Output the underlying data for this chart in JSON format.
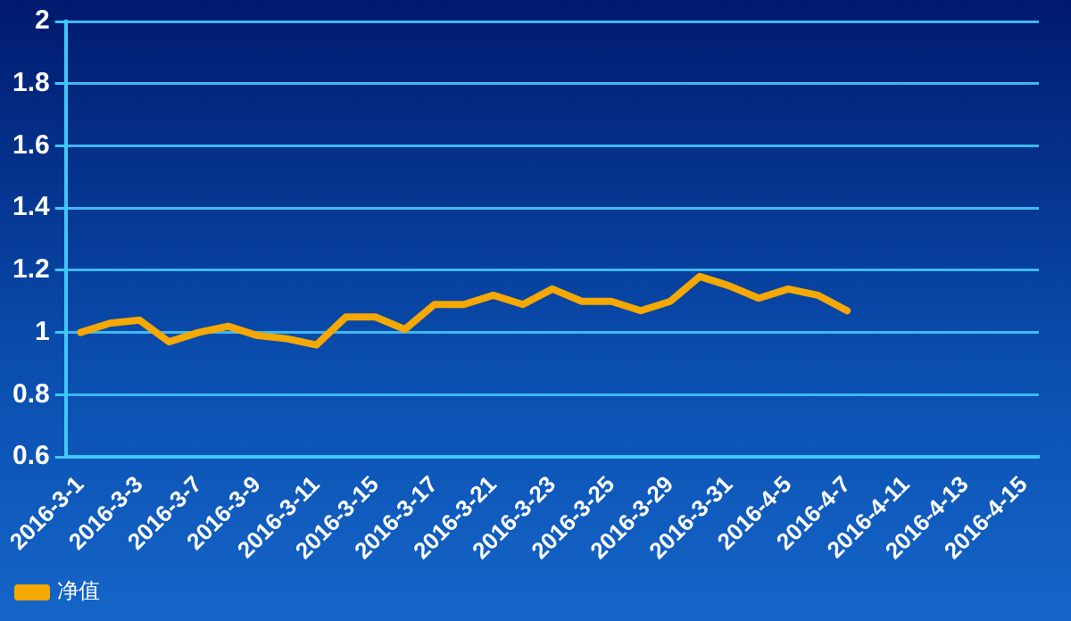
{
  "chart_data": {
    "type": "line",
    "categories": [
      "2016-3-1",
      null,
      "2016-3-3",
      null,
      "2016-3-7",
      null,
      "2016-3-9",
      null,
      "2016-3-11",
      null,
      "2016-3-15",
      null,
      "2016-3-17",
      null,
      "2016-3-21",
      null,
      "2016-3-23",
      null,
      "2016-3-25",
      null,
      "2016-3-29",
      null,
      "2016-3-31",
      null,
      "2016-4-5",
      null,
      "2016-4-7",
      null,
      "2016-4-11",
      null,
      "2016-4-13",
      null,
      "2016-4-15"
    ],
    "series": [
      {
        "name": "净值",
        "color": "#f5a800",
        "values": [
          1.0,
          1.03,
          1.04,
          0.97,
          1.0,
          1.02,
          0.99,
          0.98,
          0.96,
          1.05,
          1.05,
          1.01,
          1.09,
          1.09,
          1.12,
          1.09,
          1.14,
          1.1,
          1.1,
          1.07,
          1.1,
          1.18,
          1.15,
          1.11,
          1.14,
          1.12,
          1.07,
          null,
          null,
          null,
          null,
          null,
          null
        ]
      }
    ],
    "ylim": [
      0.6,
      2
    ],
    "yticks": [
      0.6,
      0.8,
      1,
      1.2,
      1.4,
      1.6,
      1.8,
      2
    ],
    "grid": "y",
    "legend": "bottom left",
    "marker": "none",
    "line_style": "solid"
  }
}
